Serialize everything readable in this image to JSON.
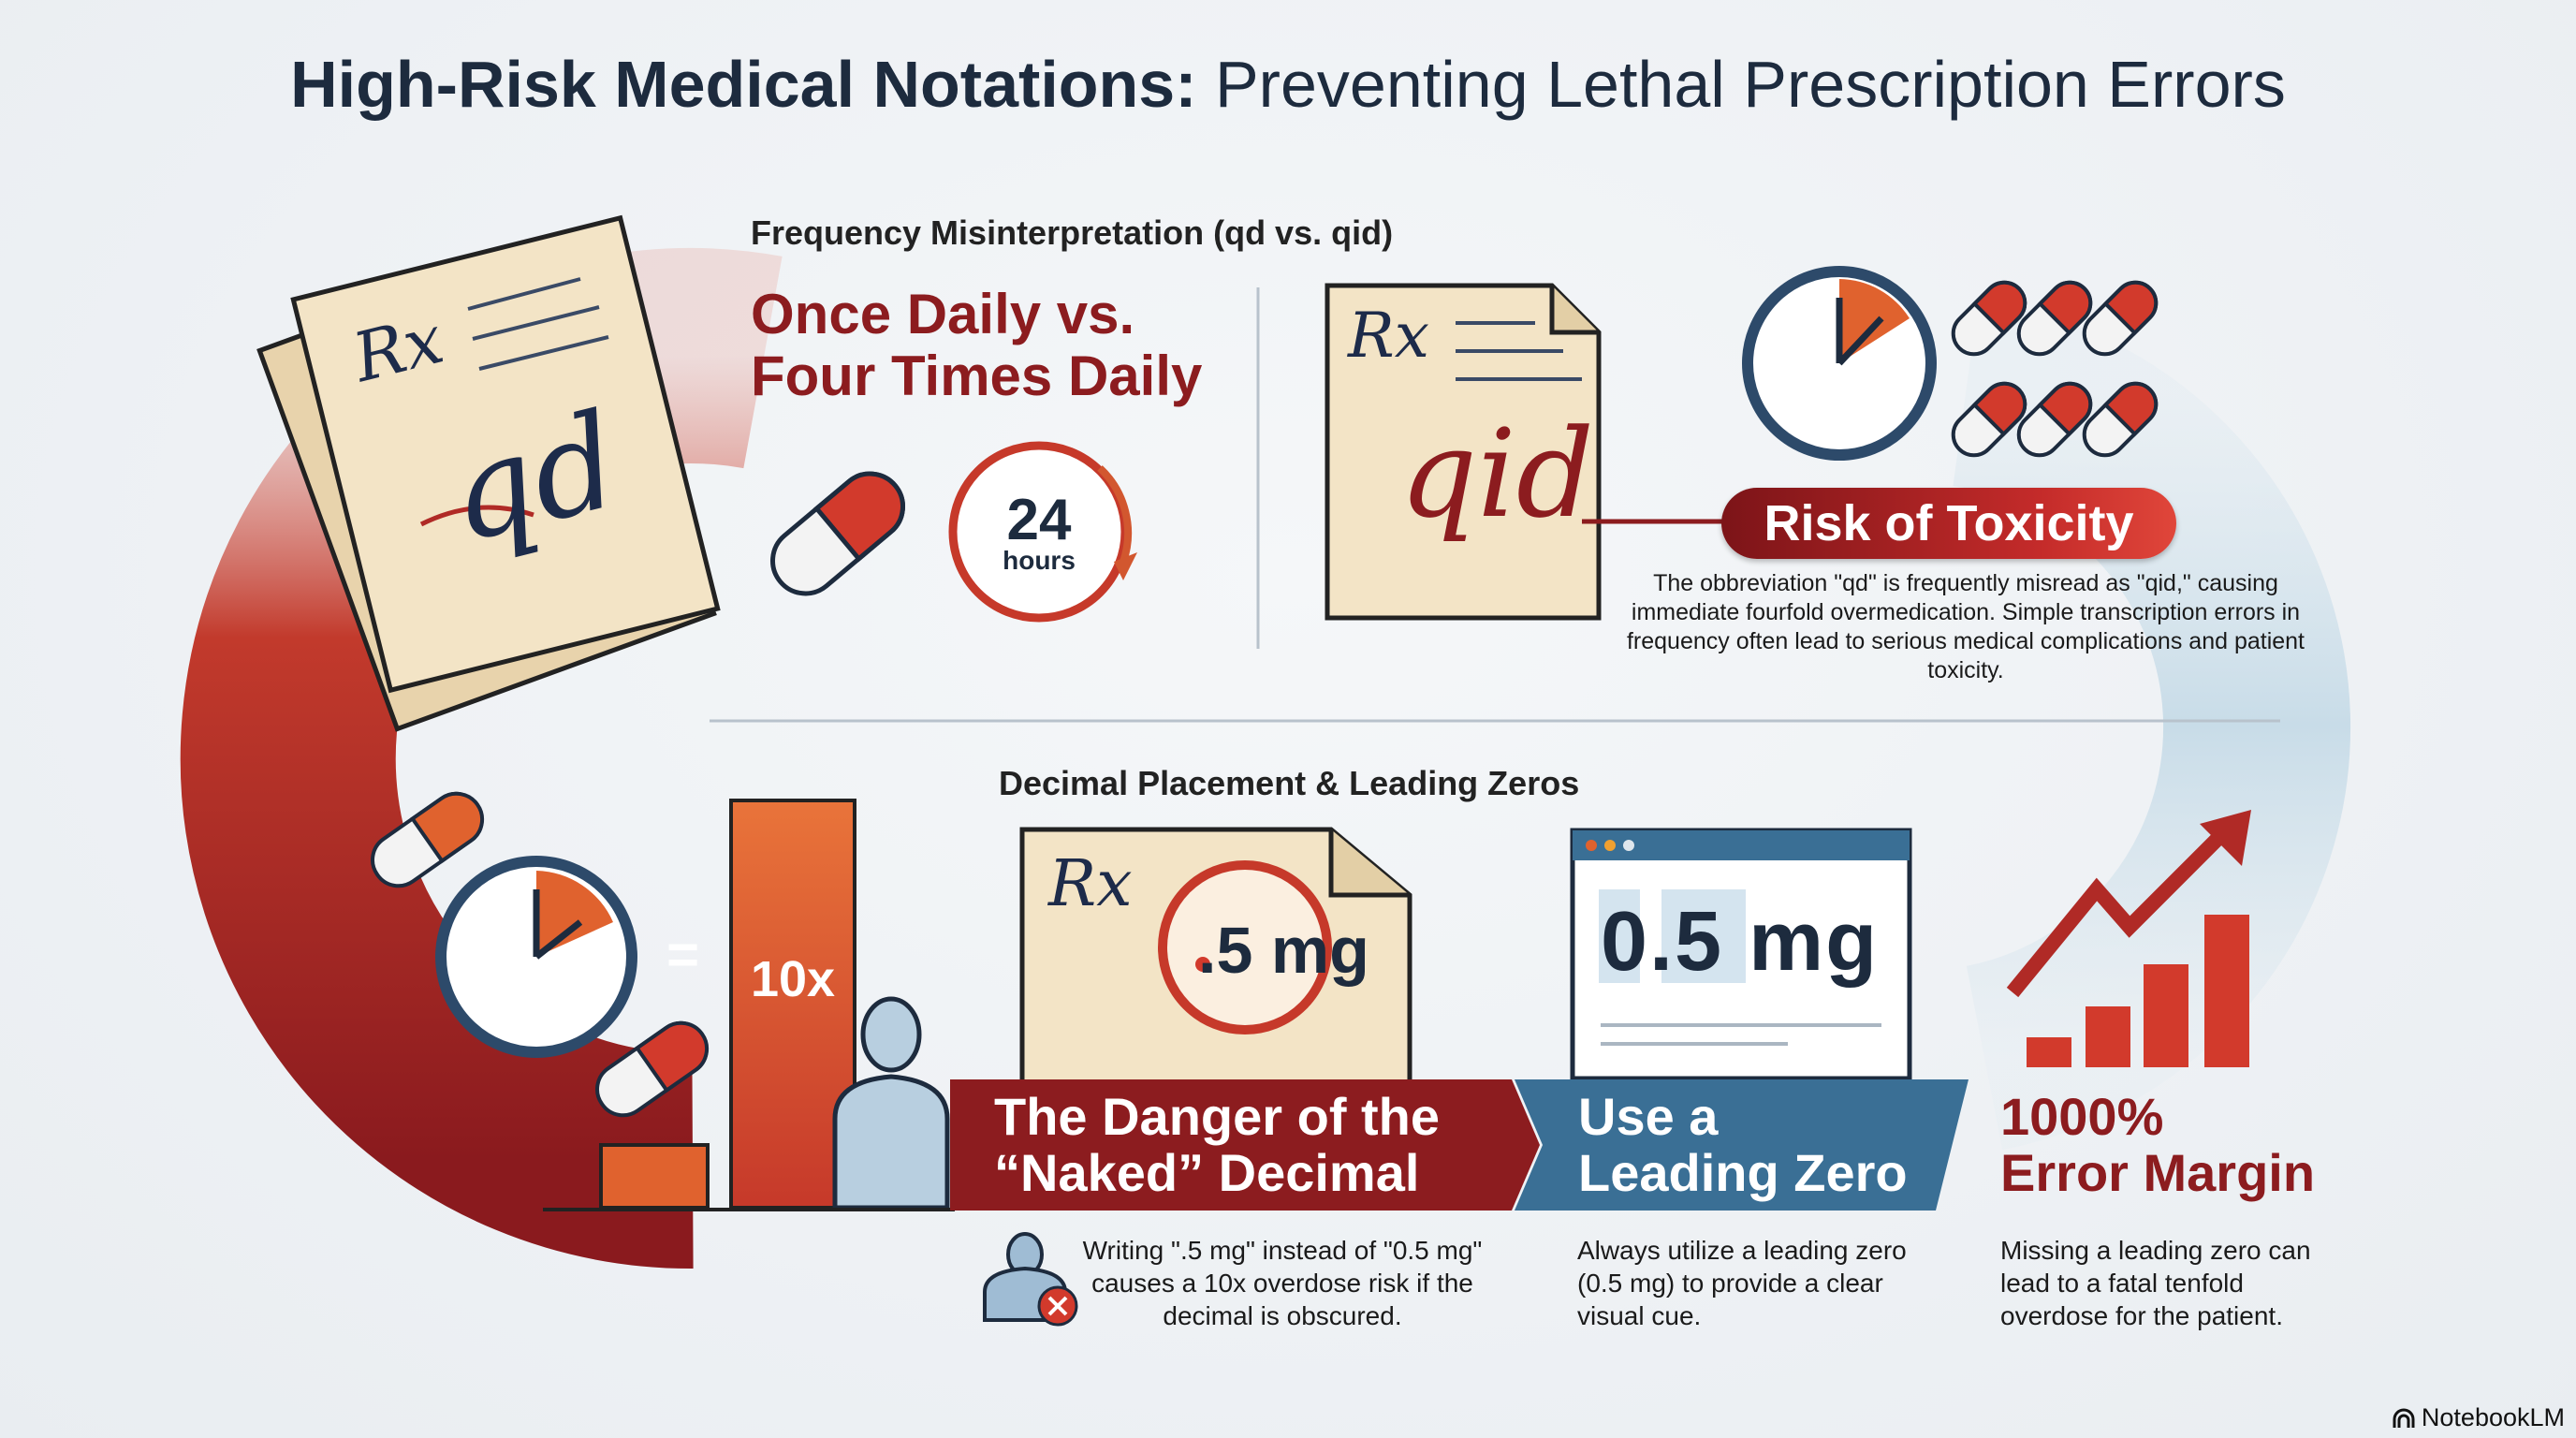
{
  "title": {
    "bold": "High-Risk Medical Notations:",
    "rest": " Preventing Lethal Prescription Errors"
  },
  "frequency": {
    "section_label": "Frequency Misinterpretation (qd vs. qid)",
    "headline_line1": "Once Daily vs.",
    "headline_line2": "Four Times Daily",
    "rx_symbol": "Rx",
    "qd_text": "qd",
    "qid_text": "qid",
    "clock_number": "24",
    "clock_unit": "hours",
    "risk_label": "Risk of Toxicity",
    "risk_description": "The obbreviation \"qd\" is frequently misread as \"qid,\" causing immediate fourfold overmedication. Simple transcription errors in frequency often lead to serious medical complications and patient toxicity."
  },
  "decimal": {
    "section_label": "Decimal Placement & Leading Zeros",
    "equals": "=",
    "multiplier": "10x",
    "rx_symbol": "Rx",
    "naked_dose": ".5 mg",
    "leading_dose": "0.5 mg",
    "danger_title_line1": "The Danger of the",
    "danger_title_line2": "“Naked” Decimal",
    "leading_title_line1": "Use a",
    "leading_title_line2": "Leading Zero",
    "margin_title_line1": "1000%",
    "margin_title_line2": "Error Margin",
    "danger_body": "Writing \".5 mg\" instead of \"0.5 mg\" causes a 10x overdose risk if the decimal is obscured.",
    "leading_body": "Always utilize a leading zero (0.5 mg) to provide a clear visual cue.",
    "margin_body": "Missing a leading zero can lead to a fatal tenfold overdose for the patient."
  },
  "brand": "NotebookLM",
  "colors": {
    "accent_red": "#8c1c1f",
    "bright_red": "#d23a2c",
    "accent_blue": "#3a6f95",
    "light_blue": "#cfe0ea",
    "paper": "#f1e3c6",
    "orange": "#e0622e"
  }
}
